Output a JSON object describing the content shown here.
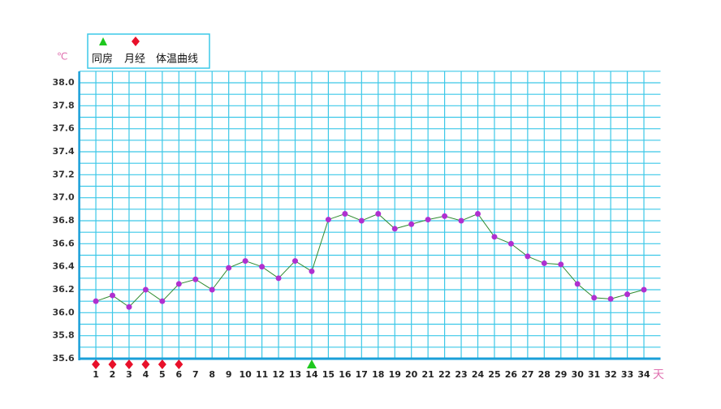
{
  "chart_data": {
    "type": "line",
    "y_unit": "℃",
    "x_unit": "天",
    "legend": [
      "同房",
      "月经",
      "体温曲线"
    ],
    "x": [
      1,
      2,
      3,
      4,
      5,
      6,
      7,
      8,
      9,
      10,
      11,
      12,
      13,
      14,
      15,
      16,
      17,
      18,
      19,
      20,
      21,
      22,
      23,
      24,
      25,
      26,
      27,
      28,
      29,
      30,
      31,
      32,
      33,
      34
    ],
    "series": [
      {
        "name": "体温曲线",
        "color": "#2e8b2e",
        "marker_color": "#b030d0",
        "values": [
          36.1,
          36.15,
          36.05,
          36.2,
          36.1,
          36.25,
          36.29,
          36.2,
          36.39,
          36.45,
          36.4,
          36.3,
          36.45,
          36.36,
          36.81,
          36.86,
          36.8,
          36.86,
          36.73,
          36.77,
          36.81,
          36.84,
          36.8,
          36.86,
          36.66,
          36.6,
          36.49,
          36.43,
          36.42,
          36.25,
          36.13,
          36.12,
          36.16,
          36.2
        ]
      }
    ],
    "menstruation_days": [
      1,
      2,
      3,
      4,
      5,
      6
    ],
    "intercourse_days": [
      14
    ],
    "xlim": [
      0,
      35
    ],
    "xticks": [
      1,
      2,
      3,
      4,
      5,
      6,
      7,
      8,
      9,
      10,
      11,
      12,
      13,
      14,
      15,
      16,
      17,
      18,
      19,
      20,
      21,
      22,
      23,
      24,
      25,
      26,
      27,
      28,
      29,
      30,
      31,
      32,
      33,
      34
    ],
    "highlighted_xticks": [
      7,
      14,
      21,
      28
    ],
    "ylim": [
      35.6,
      38.0
    ],
    "yticks": [
      {
        "value": 35.6,
        "label": "35.6"
      },
      {
        "value": 35.8,
        "label": "35.8"
      },
      {
        "value": 36,
        "label": "36.0"
      },
      {
        "value": 36.2,
        "label": "36.2"
      },
      {
        "value": 36.4,
        "label": "36.4"
      },
      {
        "value": 36.6,
        "label": "36.6"
      },
      {
        "value": 36.8,
        "label": "36.8"
      },
      {
        "value": 37,
        "label": "37.0"
      },
      {
        "value": 37.2,
        "label": "37.2"
      },
      {
        "value": 37.4,
        "label": "37.4"
      },
      {
        "value": 37.6,
        "label": "37.6"
      },
      {
        "value": 37.8,
        "label": "37.8"
      },
      {
        "value": 38,
        "label": "38.0"
      }
    ],
    "highlighted_yticks": [
      35.6,
      36.6,
      37.6
    ],
    "highlight_color": "#e8102a",
    "grid": true,
    "grid_color": "#3cc8e8",
    "axis_color": "#1a9fd8"
  }
}
